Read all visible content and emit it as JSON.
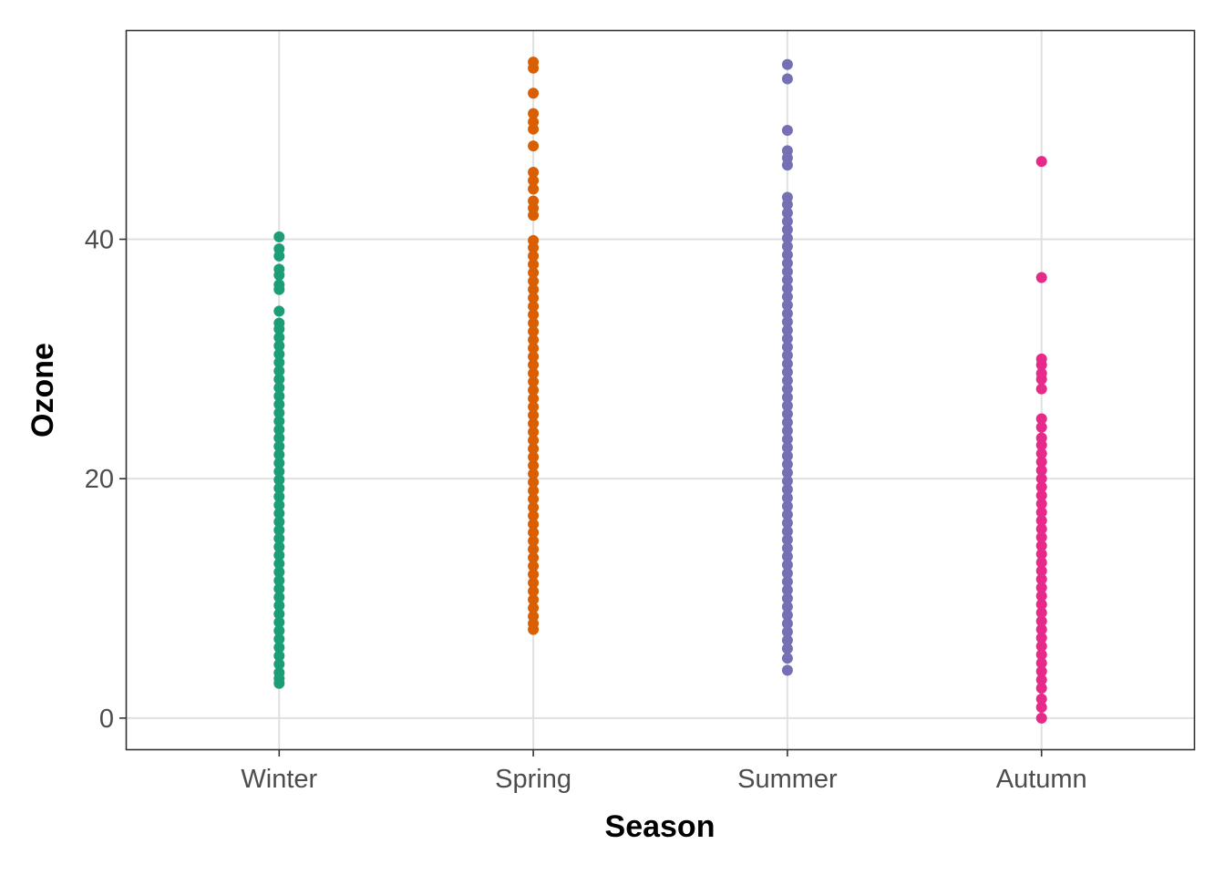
{
  "chart_data": {
    "type": "scatter",
    "title": "",
    "xlabel": "Season",
    "ylabel": "Ozone",
    "categories": [
      "Winter",
      "Spring",
      "Summer",
      "Autumn"
    ],
    "y_ticks": [
      0,
      20,
      40
    ],
    "ylim": [
      -2.6,
      57.4
    ],
    "grid": true,
    "legend": "none",
    "series": [
      {
        "category": "Winter",
        "color": "#1b9e77",
        "values": [
          2.9,
          3.3,
          3.8,
          4.5,
          5.2,
          5.9,
          6.6,
          7.3,
          8.0,
          8.7,
          9.4,
          10.1,
          10.8,
          11.5,
          12.2,
          12.9,
          13.6,
          14.3,
          15.0,
          15.7,
          16.4,
          17.1,
          17.8,
          18.5,
          19.2,
          19.9,
          20.6,
          21.3,
          22.0,
          22.7,
          23.4,
          24.1,
          24.8,
          25.5,
          26.2,
          26.9,
          27.6,
          28.3,
          29.0,
          29.7,
          30.4,
          31.1,
          31.8,
          32.5,
          33.0,
          34.0,
          35.8,
          36.2,
          37.0,
          37.5,
          38.6,
          39.2,
          40.2
        ]
      },
      {
        "category": "Spring",
        "color": "#d95f02",
        "values": [
          7.4,
          7.9,
          8.5,
          9.2,
          9.9,
          10.6,
          11.3,
          12.0,
          12.7,
          13.4,
          14.1,
          14.8,
          15.5,
          16.2,
          16.9,
          17.6,
          18.3,
          19.0,
          19.7,
          20.4,
          21.1,
          21.8,
          22.5,
          23.2,
          23.9,
          24.6,
          25.3,
          26.0,
          26.7,
          27.4,
          28.1,
          28.8,
          29.5,
          30.2,
          30.9,
          31.6,
          32.3,
          33.0,
          33.7,
          34.4,
          35.1,
          35.8,
          36.5,
          37.2,
          37.9,
          38.6,
          39.3,
          39.9,
          42.0,
          42.6,
          43.2,
          44.2,
          44.9,
          45.6,
          47.8,
          49.2,
          49.8,
          50.5,
          52.2,
          54.3,
          54.8
        ]
      },
      {
        "category": "Summer",
        "color": "#7570b3",
        "values": [
          4.0,
          5.0,
          5.8,
          6.5,
          7.2,
          7.9,
          8.6,
          9.3,
          10.0,
          10.7,
          11.4,
          12.1,
          12.8,
          13.5,
          14.2,
          14.9,
          15.6,
          16.3,
          17.0,
          17.7,
          18.4,
          19.1,
          19.8,
          20.5,
          21.2,
          21.9,
          22.6,
          23.3,
          24.0,
          24.7,
          25.4,
          26.1,
          26.8,
          27.5,
          28.2,
          28.9,
          29.6,
          30.3,
          31.0,
          31.7,
          32.4,
          33.1,
          33.8,
          34.5,
          35.2,
          35.9,
          36.6,
          37.3,
          38.0,
          38.7,
          39.4,
          40.1,
          40.8,
          41.5,
          42.2,
          42.9,
          43.5,
          46.2,
          46.8,
          47.4,
          49.1,
          53.4,
          54.6
        ]
      },
      {
        "category": "Autumn",
        "color": "#e7298a",
        "values": [
          0.0,
          0.9,
          1.6,
          2.5,
          3.2,
          3.9,
          4.6,
          5.3,
          6.0,
          6.7,
          7.4,
          8.1,
          8.8,
          9.5,
          10.2,
          10.9,
          11.6,
          12.3,
          13.0,
          13.7,
          14.4,
          15.1,
          15.8,
          16.5,
          17.2,
          17.9,
          18.6,
          19.3,
          20.0,
          20.7,
          21.4,
          22.1,
          22.8,
          23.4,
          24.3,
          25.0,
          27.5,
          28.3,
          28.8,
          29.5,
          30.0,
          36.8,
          46.5
        ]
      }
    ]
  }
}
